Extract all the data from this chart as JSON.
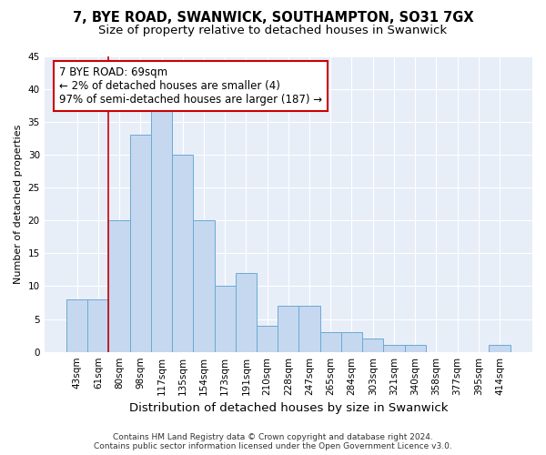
{
  "title1": "7, BYE ROAD, SWANWICK, SOUTHAMPTON, SO31 7GX",
  "title2": "Size of property relative to detached houses in Swanwick",
  "xlabel": "Distribution of detached houses by size in Swanwick",
  "ylabel": "Number of detached properties",
  "categories": [
    "43sqm",
    "61sqm",
    "80sqm",
    "98sqm",
    "117sqm",
    "135sqm",
    "154sqm",
    "173sqm",
    "191sqm",
    "210sqm",
    "228sqm",
    "247sqm",
    "265sqm",
    "284sqm",
    "303sqm",
    "321sqm",
    "340sqm",
    "358sqm",
    "377sqm",
    "395sqm",
    "414sqm"
  ],
  "values": [
    8,
    8,
    20,
    33,
    37,
    30,
    20,
    10,
    12,
    4,
    7,
    7,
    3,
    3,
    2,
    1,
    1,
    0,
    0,
    0,
    1
  ],
  "bar_color": "#c5d8f0",
  "bar_edge_color": "#6aaad4",
  "bar_linewidth": 0.7,
  "annotation_text": "7 BYE ROAD: 69sqm\n← 2% of detached houses are smaller (4)\n97% of semi-detached houses are larger (187) →",
  "annotation_box_color": "#ffffff",
  "annotation_box_edge": "#cc0000",
  "vline_color": "#cc0000",
  "vline_x": 1.47,
  "ylim": [
    0,
    45
  ],
  "yticks": [
    0,
    5,
    10,
    15,
    20,
    25,
    30,
    35,
    40,
    45
  ],
  "fig_bg_color": "#ffffff",
  "plot_bg_color": "#e8eef8",
  "grid_color": "#ffffff",
  "footnote": "Contains HM Land Registry data © Crown copyright and database right 2024.\nContains public sector information licensed under the Open Government Licence v3.0.",
  "title1_fontsize": 10.5,
  "title2_fontsize": 9.5,
  "xlabel_fontsize": 9.5,
  "ylabel_fontsize": 8,
  "tick_fontsize": 7.5,
  "annot_fontsize": 8.5,
  "footnote_fontsize": 6.5
}
